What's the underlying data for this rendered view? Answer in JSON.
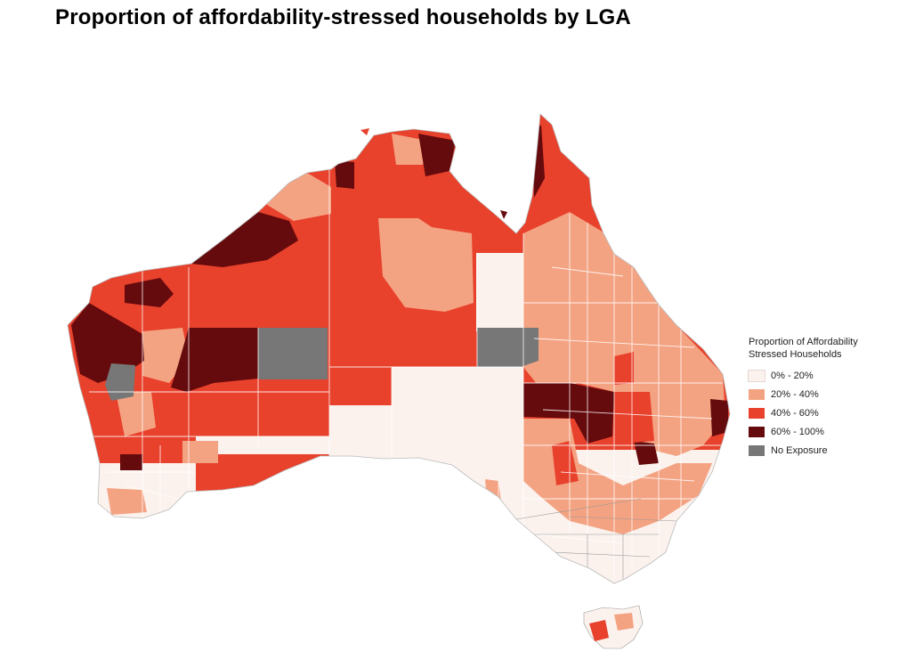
{
  "title": "Proportion of affordability-stressed households by LGA",
  "legend": {
    "title_line1": "Proportion of Affordability",
    "title_line2": "Stressed Households",
    "items": [
      {
        "label": "0% - 20%",
        "color": "#fbf2ee"
      },
      {
        "label": "20% - 40%",
        "color": "#f4a382"
      },
      {
        "label": "40% - 60%",
        "color": "#e8412c"
      },
      {
        "label": "60% - 100%",
        "color": "#650a0d"
      },
      {
        "label": "No Exposure",
        "color": "#777777"
      }
    ]
  }
}
